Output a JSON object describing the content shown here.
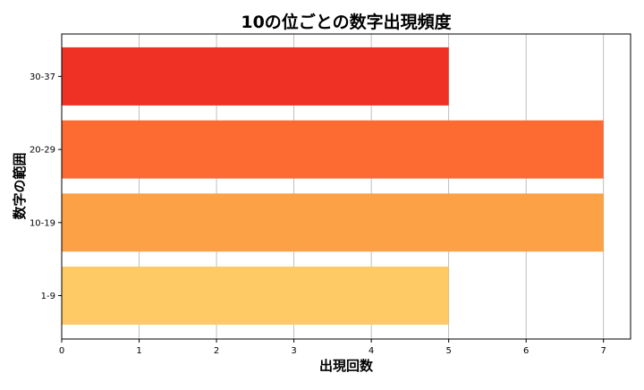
{
  "chart_data": {
    "type": "bar",
    "orientation": "horizontal",
    "title": "10の位ごとの数字出現頻度",
    "xlabel": "出現回数",
    "ylabel": "数字の範囲",
    "categories": [
      "1-9",
      "10-19",
      "20-29",
      "30-37"
    ],
    "values": [
      5,
      7,
      7,
      5
    ],
    "colors": [
      "#fdca66",
      "#fca145",
      "#fd6a32",
      "#ee3124"
    ],
    "xlim": [
      0,
      7.35
    ],
    "xticks": [
      0,
      1,
      2,
      3,
      4,
      5,
      6,
      7
    ],
    "grid": "x-axis vertical lines",
    "gridColor": "#b0b0b0",
    "legend": "none"
  }
}
